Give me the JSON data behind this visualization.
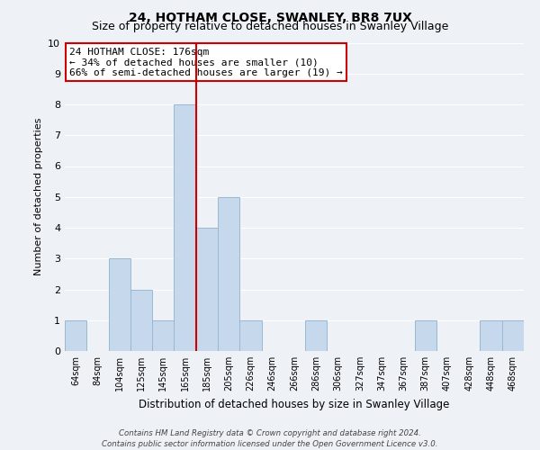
{
  "title": "24, HOTHAM CLOSE, SWANLEY, BR8 7UX",
  "subtitle": "Size of property relative to detached houses in Swanley Village",
  "xlabel": "Distribution of detached houses by size in Swanley Village",
  "ylabel": "Number of detached properties",
  "bar_labels": [
    "64sqm",
    "84sqm",
    "104sqm",
    "125sqm",
    "145sqm",
    "165sqm",
    "185sqm",
    "205sqm",
    "226sqm",
    "246sqm",
    "266sqm",
    "286sqm",
    "306sqm",
    "327sqm",
    "347sqm",
    "367sqm",
    "387sqm",
    "407sqm",
    "428sqm",
    "448sqm",
    "468sqm"
  ],
  "bar_heights": [
    1,
    0,
    3,
    2,
    1,
    8,
    4,
    5,
    1,
    0,
    0,
    1,
    0,
    0,
    0,
    0,
    1,
    0,
    0,
    1,
    1
  ],
  "bar_color": "#c6d9ec",
  "bar_edge_color": "#9ab8d0",
  "vline_x": 6,
  "vline_color": "#cc0000",
  "annotation_title": "24 HOTHAM CLOSE: 176sqm",
  "annotation_line1": "← 34% of detached houses are smaller (10)",
  "annotation_line2": "66% of semi-detached houses are larger (19) →",
  "annotation_box_facecolor": "#ffffff",
  "annotation_box_edgecolor": "#cc0000",
  "ylim": [
    0,
    10
  ],
  "yticks": [
    0,
    1,
    2,
    3,
    4,
    5,
    6,
    7,
    8,
    9,
    10
  ],
  "footer1": "Contains HM Land Registry data © Crown copyright and database right 2024.",
  "footer2": "Contains public sector information licensed under the Open Government Licence v3.0.",
  "bg_color": "#eef2f7",
  "grid_color": "#ffffff",
  "title_fontsize": 10,
  "subtitle_fontsize": 9
}
